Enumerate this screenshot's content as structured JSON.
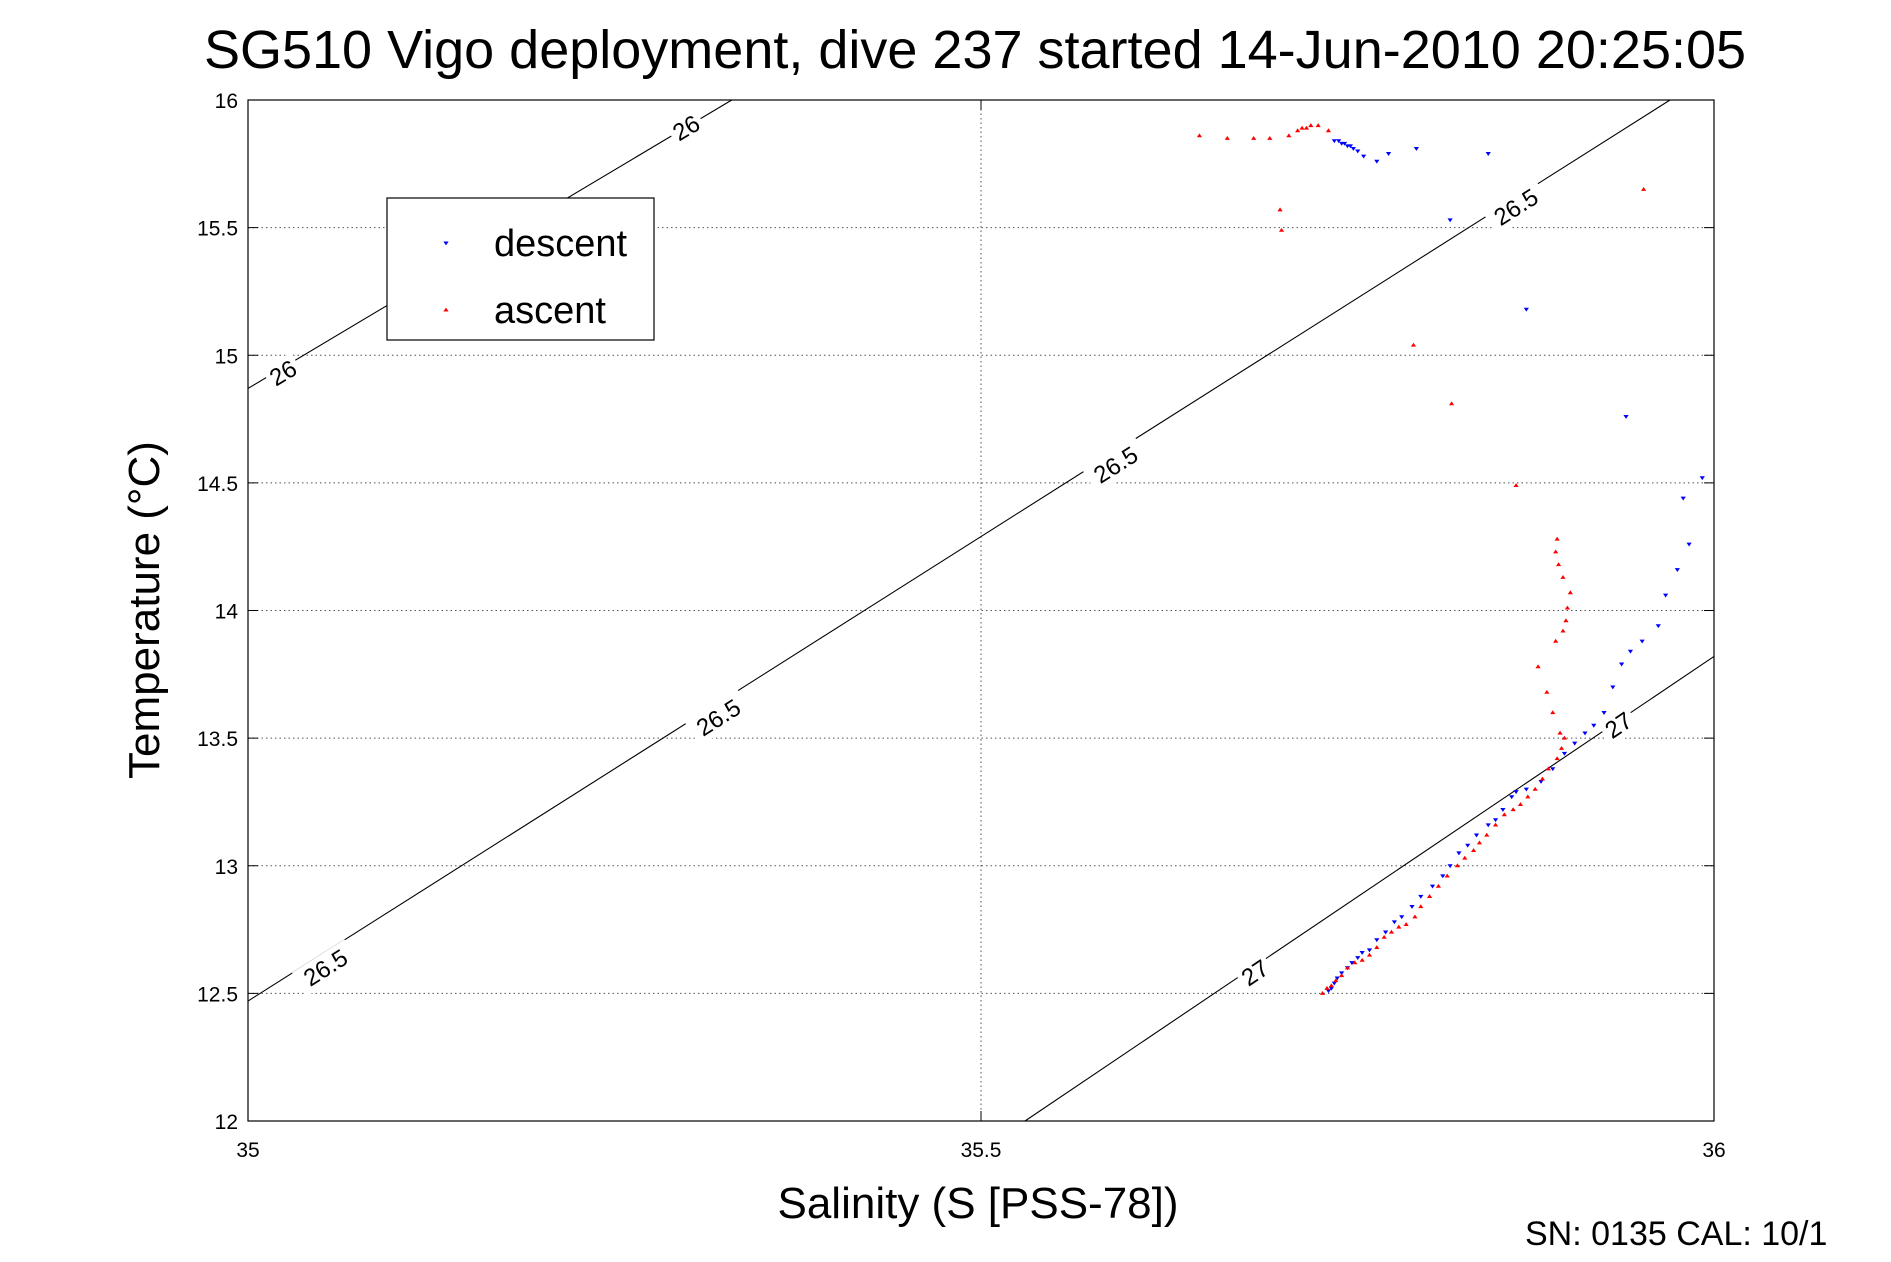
{
  "chart_data": {
    "type": "scatter",
    "title": "SG510 Vigo deployment, dive 237 started 14-Jun-2010 20:25:05",
    "xlabel": "Salinity (S [PSS-78])",
    "ylabel": "Temperature (°C)",
    "xlim": [
      35,
      36
    ],
    "ylim": [
      12,
      16
    ],
    "xticks": [
      {
        "value": 35,
        "label": "35"
      },
      {
        "value": 35.5,
        "label": "35.5"
      },
      {
        "value": 36,
        "label": "36"
      }
    ],
    "yticks": [
      {
        "value": 12,
        "label": "12"
      },
      {
        "value": 12.5,
        "label": "12.5"
      },
      {
        "value": 13,
        "label": "13"
      },
      {
        "value": 13.5,
        "label": "13.5"
      },
      {
        "value": 14,
        "label": "14"
      },
      {
        "value": 14.5,
        "label": "14.5"
      },
      {
        "value": 15,
        "label": "15"
      },
      {
        "value": 15.5,
        "label": "15.5"
      },
      {
        "value": 16,
        "label": "16"
      }
    ],
    "grid": true,
    "legend_position": "top-left",
    "density_contours": [
      {
        "label": "26",
        "points": [
          [
            35,
            14.87
          ],
          [
            35.33,
            16.0
          ]
        ],
        "label_at": [
          [
            35.024,
            14.93
          ],
          [
            35.299,
            15.89
          ]
        ]
      },
      {
        "label": "26.5",
        "points": [
          [
            35,
            12.47
          ],
          [
            35.97,
            16.0
          ]
        ],
        "label_at": [
          [
            35.053,
            12.6
          ],
          [
            35.321,
            13.58
          ],
          [
            35.592,
            14.57
          ],
          [
            35.865,
            15.58
          ]
        ]
      },
      {
        "label": "27",
        "points": [
          [
            35.53,
            12.0
          ],
          [
            36,
            13.82
          ]
        ],
        "label_at": [
          [
            35.687,
            12.58
          ],
          [
            35.935,
            13.55
          ]
        ]
      }
    ],
    "series": [
      {
        "name": "descent",
        "color": "#0000ff",
        "marker": "triangle-down",
        "points": [
          [
            35.741,
            15.84
          ],
          [
            35.744,
            15.84
          ],
          [
            35.746,
            15.83
          ],
          [
            35.748,
            15.83
          ],
          [
            35.75,
            15.82
          ],
          [
            35.752,
            15.82
          ],
          [
            35.754,
            15.81
          ],
          [
            35.757,
            15.8
          ],
          [
            35.761,
            15.78
          ],
          [
            35.77,
            15.76
          ],
          [
            35.778,
            15.79
          ],
          [
            35.797,
            15.81
          ],
          [
            35.82,
            15.53
          ],
          [
            35.846,
            15.79
          ],
          [
            35.872,
            15.18
          ],
          [
            35.94,
            14.76
          ],
          [
            35.992,
            14.52
          ],
          [
            35.979,
            14.44
          ],
          [
            35.983,
            14.26
          ],
          [
            35.975,
            14.16
          ],
          [
            35.967,
            14.06
          ],
          [
            35.962,
            13.94
          ],
          [
            35.951,
            13.88
          ],
          [
            35.943,
            13.84
          ],
          [
            35.937,
            13.79
          ],
          [
            35.931,
            13.7
          ],
          [
            35.925,
            13.6
          ],
          [
            35.918,
            13.55
          ],
          [
            35.912,
            13.52
          ],
          [
            35.905,
            13.48
          ],
          [
            35.898,
            13.44
          ],
          [
            35.89,
            13.38
          ],
          [
            35.882,
            13.33
          ],
          [
            35.872,
            13.3
          ],
          [
            35.865,
            13.29
          ],
          [
            35.862,
            13.27
          ],
          [
            35.856,
            13.22
          ],
          [
            35.851,
            13.18
          ],
          [
            35.846,
            13.16
          ],
          [
            35.838,
            13.12
          ],
          [
            35.832,
            13.08
          ],
          [
            35.826,
            13.05
          ],
          [
            35.82,
            13.0
          ],
          [
            35.815,
            12.96
          ],
          [
            35.808,
            12.92
          ],
          [
            35.8,
            12.88
          ],
          [
            35.794,
            12.84
          ],
          [
            35.787,
            12.8
          ],
          [
            35.782,
            12.78
          ],
          [
            35.776,
            12.74
          ],
          [
            35.77,
            12.71
          ],
          [
            35.765,
            12.67
          ],
          [
            35.76,
            12.66
          ],
          [
            35.757,
            12.64
          ],
          [
            35.753,
            12.62
          ],
          [
            35.75,
            12.6
          ],
          [
            35.746,
            12.58
          ],
          [
            35.743,
            12.56
          ],
          [
            35.741,
            12.54
          ],
          [
            35.739,
            12.52
          ],
          [
            35.737,
            12.51
          ]
        ]
      },
      {
        "name": "ascent",
        "color": "#ff0000",
        "marker": "triangle-up",
        "points": [
          [
            35.649,
            15.86
          ],
          [
            35.668,
            15.85
          ],
          [
            35.686,
            15.85
          ],
          [
            35.697,
            15.85
          ],
          [
            35.71,
            15.86
          ],
          [
            35.716,
            15.88
          ],
          [
            35.719,
            15.89
          ],
          [
            35.722,
            15.89
          ],
          [
            35.725,
            15.9
          ],
          [
            35.73,
            15.9
          ],
          [
            35.737,
            15.88
          ],
          [
            35.704,
            15.57
          ],
          [
            35.705,
            15.49
          ],
          [
            35.952,
            15.65
          ],
          [
            35.795,
            15.04
          ],
          [
            35.821,
            14.81
          ],
          [
            35.865,
            14.49
          ],
          [
            35.893,
            14.28
          ],
          [
            35.892,
            14.23
          ],
          [
            35.894,
            14.18
          ],
          [
            35.897,
            14.13
          ],
          [
            35.902,
            14.07
          ],
          [
            35.9,
            14.01
          ],
          [
            35.899,
            13.96
          ],
          [
            35.897,
            13.92
          ],
          [
            35.892,
            13.88
          ],
          [
            35.88,
            13.78
          ],
          [
            35.886,
            13.68
          ],
          [
            35.89,
            13.6
          ],
          [
            35.895,
            13.52
          ],
          [
            35.898,
            13.5
          ],
          [
            35.896,
            13.46
          ],
          [
            35.893,
            13.42
          ],
          [
            35.887,
            13.38
          ],
          [
            35.883,
            13.34
          ],
          [
            35.878,
            13.3
          ],
          [
            35.873,
            13.27
          ],
          [
            35.868,
            13.24
          ],
          [
            35.863,
            13.22
          ],
          [
            35.857,
            13.2
          ],
          [
            35.851,
            13.16
          ],
          [
            35.845,
            13.12
          ],
          [
            35.84,
            13.09
          ],
          [
            35.836,
            13.06
          ],
          [
            35.83,
            13.03
          ],
          [
            35.825,
            13.0
          ],
          [
            35.818,
            12.96
          ],
          [
            35.812,
            12.92
          ],
          [
            35.806,
            12.88
          ],
          [
            35.8,
            12.84
          ],
          [
            35.796,
            12.8
          ],
          [
            35.79,
            12.77
          ],
          [
            35.785,
            12.76
          ],
          [
            35.78,
            12.74
          ],
          [
            35.775,
            12.72
          ],
          [
            35.77,
            12.68
          ],
          [
            35.765,
            12.65
          ],
          [
            35.76,
            12.63
          ],
          [
            35.755,
            12.62
          ],
          [
            35.75,
            12.6
          ],
          [
            35.746,
            12.57
          ],
          [
            35.742,
            12.55
          ],
          [
            35.739,
            12.53
          ],
          [
            35.736,
            12.52
          ],
          [
            35.733,
            12.5
          ]
        ]
      }
    ],
    "footer_text": "SN: 0135  CAL: 10/1"
  }
}
